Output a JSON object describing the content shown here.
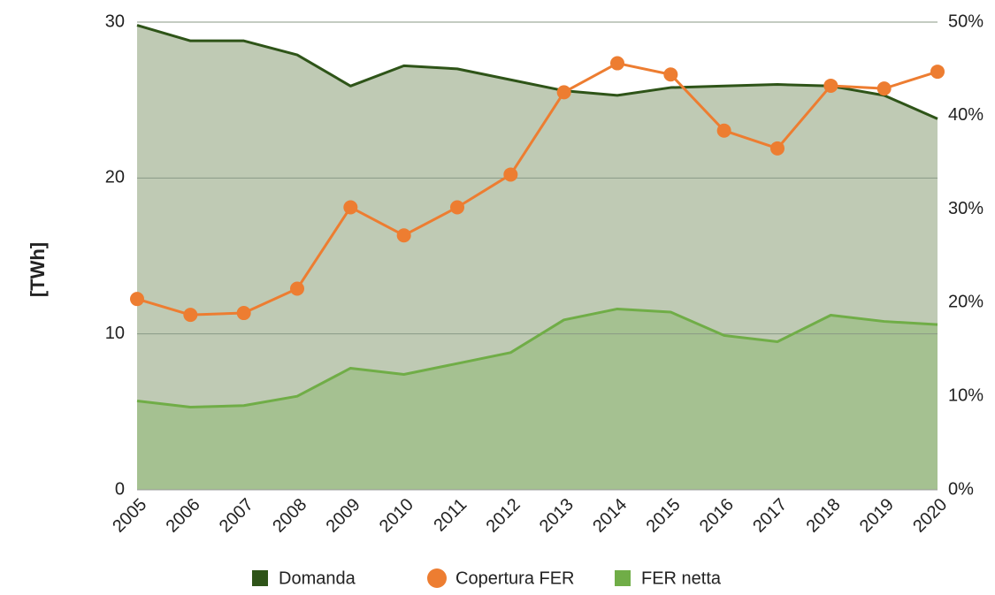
{
  "chart_data": {
    "type": "area-line",
    "y_label": "[TWh]",
    "x": [
      "2005",
      "2006",
      "2007",
      "2008",
      "2009",
      "2010",
      "2011",
      "2012",
      "2013",
      "2014",
      "2015",
      "2016",
      "2017",
      "2018",
      "2019",
      "2020"
    ],
    "series": [
      {
        "name": "Domanda",
        "color": "#2e5418",
        "fill": "#bfcab4",
        "type": "area",
        "values": [
          29.8,
          28.8,
          28.8,
          27.9,
          25.9,
          27.2,
          27.0,
          26.3,
          25.6,
          25.3,
          25.8,
          25.9,
          26.0,
          25.9,
          25.3,
          23.8
        ]
      },
      {
        "name": "Copertura FER",
        "color": "#ed7d31",
        "type": "line",
        "axis": "y2",
        "values": [
          20.4,
          18.7,
          18.9,
          21.5,
          30.2,
          27.2,
          30.2,
          33.7,
          42.5,
          45.6,
          44.4,
          38.4,
          36.5,
          43.2,
          42.9,
          44.7
        ]
      },
      {
        "name": "FER netta",
        "color": "#70ad47",
        "fill": "#a5c191",
        "type": "area",
        "values": [
          5.7,
          5.3,
          5.4,
          6.0,
          7.8,
          7.4,
          8.1,
          8.8,
          10.9,
          11.6,
          11.4,
          9.9,
          9.5,
          11.2,
          10.8,
          10.6
        ]
      }
    ],
    "ylim": [
      0,
      30
    ],
    "yticks": [
      0,
      10,
      20,
      30
    ],
    "y2lim": [
      0,
      50
    ],
    "y2ticks": [
      {
        "value": 0,
        "label": "0%"
      },
      {
        "value": 10,
        "label": "10%"
      },
      {
        "value": 20,
        "label": "20%"
      },
      {
        "value": 30,
        "label": "30%"
      },
      {
        "value": 40,
        "label": "40%"
      },
      {
        "value": 50,
        "label": "50%"
      }
    ],
    "grid": true,
    "legend": "bottom"
  }
}
